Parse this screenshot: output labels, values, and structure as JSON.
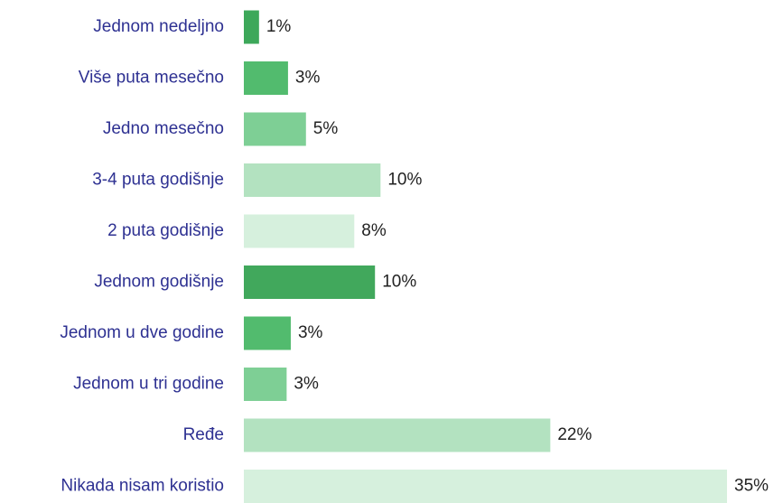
{
  "chart_data": {
    "type": "bar",
    "orientation": "horizontal",
    "categories": [
      "Jednom nedeljno",
      "Više puta mesečno",
      "Jedno mesečno",
      "3-4 puta godišnje",
      "2 puta godišnje",
      "Jednom godišnje",
      "Jednom u dve godine",
      "Jednom u tri godine",
      "Ređe",
      "Nikada nisam koristio"
    ],
    "values": [
      1.1,
      3.2,
      4.5,
      9.9,
      8.0,
      9.5,
      3.4,
      3.1,
      22.2,
      35.0
    ],
    "value_labels": [
      "1%",
      "3%",
      "5%",
      "10%",
      "8%",
      "10%",
      "3%",
      "3%",
      "22%",
      "35%"
    ],
    "colors": [
      "#3da85a",
      "#52bb6e",
      "#7ecf95",
      "#b3e2c0",
      "#d6f0dd",
      "#41a85c",
      "#52bb6e",
      "#7ecf95",
      "#b3e2c0",
      "#d6f0dd"
    ],
    "xlim": [
      0,
      35
    ]
  }
}
